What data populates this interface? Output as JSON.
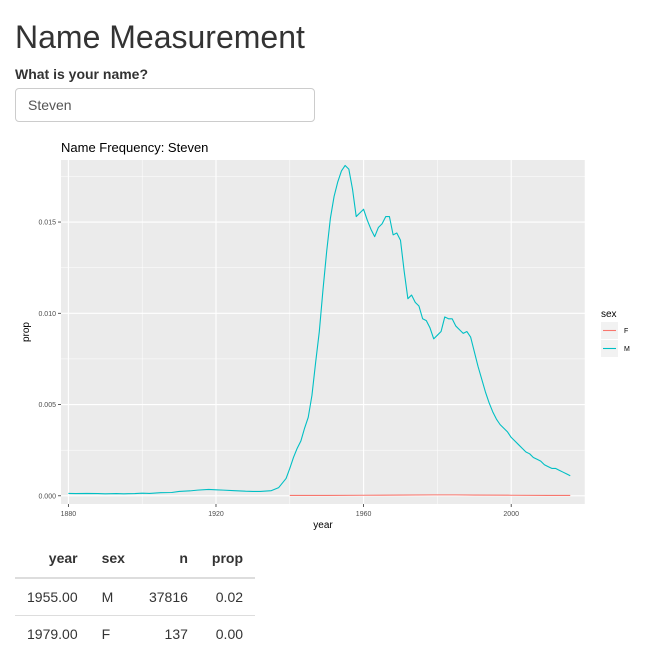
{
  "page": {
    "title": "Name Measurement",
    "name_label": "What is your name?",
    "name_value": "Steven"
  },
  "chart_data": {
    "type": "line",
    "title": "Name Frequency: Steven",
    "xlabel": "year",
    "ylabel": "prop",
    "xlim": [
      1878,
      2020
    ],
    "ylim": [
      -0.00045,
      0.0184
    ],
    "x_ticks": [
      1880,
      1920,
      1960,
      2000
    ],
    "x_tick_labels": [
      "1880",
      "1920",
      "1960",
      "2000"
    ],
    "y_ticks": [
      0.0,
      0.005,
      0.01,
      0.015
    ],
    "y_tick_labels": [
      "0.000",
      "0.005",
      "0.010",
      "0.015"
    ],
    "grid": true,
    "legend": {
      "title": "sex",
      "position": "right"
    },
    "series": [
      {
        "name": "F",
        "color": "#F8766D",
        "points": [
          [
            1940,
            2e-05
          ],
          [
            1950,
            2e-05
          ],
          [
            1960,
            3e-05
          ],
          [
            1970,
            4e-05
          ],
          [
            1979,
            5e-05
          ],
          [
            1985,
            5e-05
          ],
          [
            1990,
            4e-05
          ],
          [
            2000,
            3e-05
          ],
          [
            2010,
            2e-05
          ],
          [
            2016,
            2e-05
          ]
        ]
      },
      {
        "name": "M",
        "color": "#00BFC4",
        "points": [
          [
            1880,
            0.00013
          ],
          [
            1882,
            0.00012
          ],
          [
            1885,
            0.00013
          ],
          [
            1888,
            0.00012
          ],
          [
            1890,
            0.00011
          ],
          [
            1893,
            0.00012
          ],
          [
            1895,
            0.00011
          ],
          [
            1898,
            0.00012
          ],
          [
            1900,
            0.00014
          ],
          [
            1902,
            0.00013
          ],
          [
            1905,
            0.00017
          ],
          [
            1908,
            0.00018
          ],
          [
            1910,
            0.00024
          ],
          [
            1913,
            0.00027
          ],
          [
            1915,
            0.00031
          ],
          [
            1918,
            0.00035
          ],
          [
            1920,
            0.00033
          ],
          [
            1922,
            0.00031
          ],
          [
            1925,
            0.00028
          ],
          [
            1928,
            0.00025
          ],
          [
            1930,
            0.00024
          ],
          [
            1932,
            0.00024
          ],
          [
            1935,
            0.00028
          ],
          [
            1937,
            0.00045
          ],
          [
            1939,
            0.00095
          ],
          [
            1940,
            0.0015
          ],
          [
            1941,
            0.0021
          ],
          [
            1942,
            0.0026
          ],
          [
            1943,
            0.003
          ],
          [
            1944,
            0.0037
          ],
          [
            1945,
            0.0043
          ],
          [
            1946,
            0.0055
          ],
          [
            1947,
            0.0073
          ],
          [
            1948,
            0.009
          ],
          [
            1949,
            0.0113
          ],
          [
            1950,
            0.0134
          ],
          [
            1951,
            0.0152
          ],
          [
            1952,
            0.0164
          ],
          [
            1953,
            0.0172
          ],
          [
            1954,
            0.0178
          ],
          [
            1955,
            0.0181
          ],
          [
            1956,
            0.0179
          ],
          [
            1957,
            0.0168
          ],
          [
            1958,
            0.0153
          ],
          [
            1959,
            0.0155
          ],
          [
            1960,
            0.0157
          ],
          [
            1961,
            0.0151
          ],
          [
            1962,
            0.0146
          ],
          [
            1963,
            0.0142
          ],
          [
            1964,
            0.0147
          ],
          [
            1965,
            0.0149
          ],
          [
            1966,
            0.0153
          ],
          [
            1967,
            0.0153
          ],
          [
            1968,
            0.0143
          ],
          [
            1969,
            0.0144
          ],
          [
            1970,
            0.014
          ],
          [
            1971,
            0.0123
          ],
          [
            1972,
            0.0108
          ],
          [
            1973,
            0.011
          ],
          [
            1974,
            0.0106
          ],
          [
            1975,
            0.0104
          ],
          [
            1976,
            0.0097
          ],
          [
            1977,
            0.0096
          ],
          [
            1978,
            0.0092
          ],
          [
            1979,
            0.0086
          ],
          [
            1980,
            0.0088
          ],
          [
            1981,
            0.009
          ],
          [
            1982,
            0.0098
          ],
          [
            1983,
            0.0097
          ],
          [
            1984,
            0.0097
          ],
          [
            1985,
            0.0093
          ],
          [
            1986,
            0.0091
          ],
          [
            1987,
            0.0089
          ],
          [
            1988,
            0.009
          ],
          [
            1989,
            0.0087
          ],
          [
            1990,
            0.0079
          ],
          [
            1991,
            0.0071
          ],
          [
            1992,
            0.0064
          ],
          [
            1993,
            0.0057
          ],
          [
            1994,
            0.0051
          ],
          [
            1995,
            0.0046
          ],
          [
            1996,
            0.0042
          ],
          [
            1997,
            0.0039
          ],
          [
            1998,
            0.0037
          ],
          [
            1999,
            0.0035
          ],
          [
            2000,
            0.0032
          ],
          [
            2001,
            0.003
          ],
          [
            2002,
            0.0028
          ],
          [
            2003,
            0.0026
          ],
          [
            2004,
            0.0024
          ],
          [
            2005,
            0.0023
          ],
          [
            2006,
            0.0021
          ],
          [
            2007,
            0.002
          ],
          [
            2008,
            0.0019
          ],
          [
            2009,
            0.0017
          ],
          [
            2010,
            0.0016
          ],
          [
            2011,
            0.0015
          ],
          [
            2012,
            0.0015
          ],
          [
            2013,
            0.0014
          ],
          [
            2014,
            0.0013
          ],
          [
            2015,
            0.0012
          ],
          [
            2016,
            0.0011
          ]
        ]
      }
    ]
  },
  "table": {
    "columns": [
      "year",
      "sex",
      "n",
      "prop"
    ],
    "rows": [
      [
        "1955.00",
        "M",
        "37816",
        "0.02"
      ],
      [
        "1979.00",
        "F",
        "137",
        "0.00"
      ]
    ]
  }
}
